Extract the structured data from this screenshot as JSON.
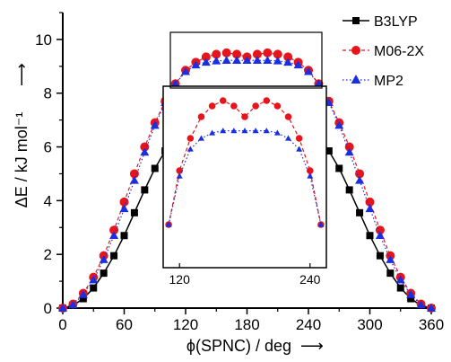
{
  "chart_data": {
    "type": "line",
    "xlabel": "ϕ(SPNC) / deg",
    "xlabel_arrow": "⟶",
    "ylabel": "ΔE / kJ mol⁻¹",
    "ylabel_arrow": "⟶",
    "xlim": [
      0,
      360
    ],
    "ylim": [
      0,
      11
    ],
    "x_ticks": [
      0,
      60,
      120,
      180,
      240,
      300,
      360
    ],
    "y_ticks": [
      0,
      2,
      4,
      6,
      8,
      10
    ],
    "grid": false,
    "legend_position": "top-right",
    "x": [
      0,
      10,
      20,
      30,
      40,
      50,
      60,
      70,
      80,
      90,
      100,
      110,
      120,
      130,
      140,
      150,
      160,
      170,
      180,
      190,
      200,
      210,
      220,
      230,
      240,
      250,
      260,
      270,
      280,
      290,
      300,
      310,
      320,
      330,
      340,
      350,
      360
    ],
    "series": [
      {
        "name": "B3LYP",
        "color": "#000000",
        "marker": "square",
        "line_style": "solid",
        "values": [
          0.0,
          0.1,
          0.35,
          0.75,
          1.3,
          1.95,
          2.7,
          3.55,
          4.4,
          5.2,
          5.85,
          6.4,
          6.85,
          7.15,
          7.35,
          7.5,
          7.58,
          7.6,
          7.6,
          7.6,
          7.58,
          7.5,
          7.35,
          7.15,
          6.85,
          6.4,
          5.85,
          5.2,
          4.4,
          3.55,
          2.7,
          1.95,
          1.3,
          0.75,
          0.35,
          0.1,
          0.0
        ]
      },
      {
        "name": "M06-2X",
        "color": "#e8141b",
        "marker": "circle",
        "line_style": "dashed",
        "values": [
          0.0,
          0.15,
          0.55,
          1.15,
          1.95,
          2.9,
          3.95,
          5.0,
          6.0,
          6.9,
          7.7,
          8.35,
          8.85,
          9.15,
          9.35,
          9.45,
          9.5,
          9.45,
          9.35,
          9.45,
          9.5,
          9.45,
          9.35,
          9.15,
          8.85,
          8.35,
          7.7,
          6.9,
          6.0,
          5.0,
          3.95,
          2.9,
          1.95,
          1.15,
          0.55,
          0.15,
          0.0
        ]
      },
      {
        "name": "MP2",
        "color": "#1a2fe0",
        "marker": "triangle",
        "line_style": "dotted",
        "values": [
          0.0,
          0.12,
          0.5,
          1.05,
          1.8,
          2.7,
          3.7,
          4.75,
          5.8,
          6.8,
          7.65,
          8.35,
          8.8,
          9.05,
          9.15,
          9.2,
          9.22,
          9.22,
          9.22,
          9.22,
          9.22,
          9.2,
          9.15,
          9.05,
          8.8,
          8.35,
          7.65,
          6.8,
          5.8,
          4.75,
          3.7,
          2.7,
          1.8,
          1.05,
          0.5,
          0.12,
          0.0
        ]
      }
    ],
    "inset": {
      "x_ticks": [
        120,
        240
      ],
      "xlim": [
        105,
        255
      ],
      "ylim": [
        7.95,
        9.6
      ],
      "series_indices": [
        1,
        2
      ]
    }
  }
}
